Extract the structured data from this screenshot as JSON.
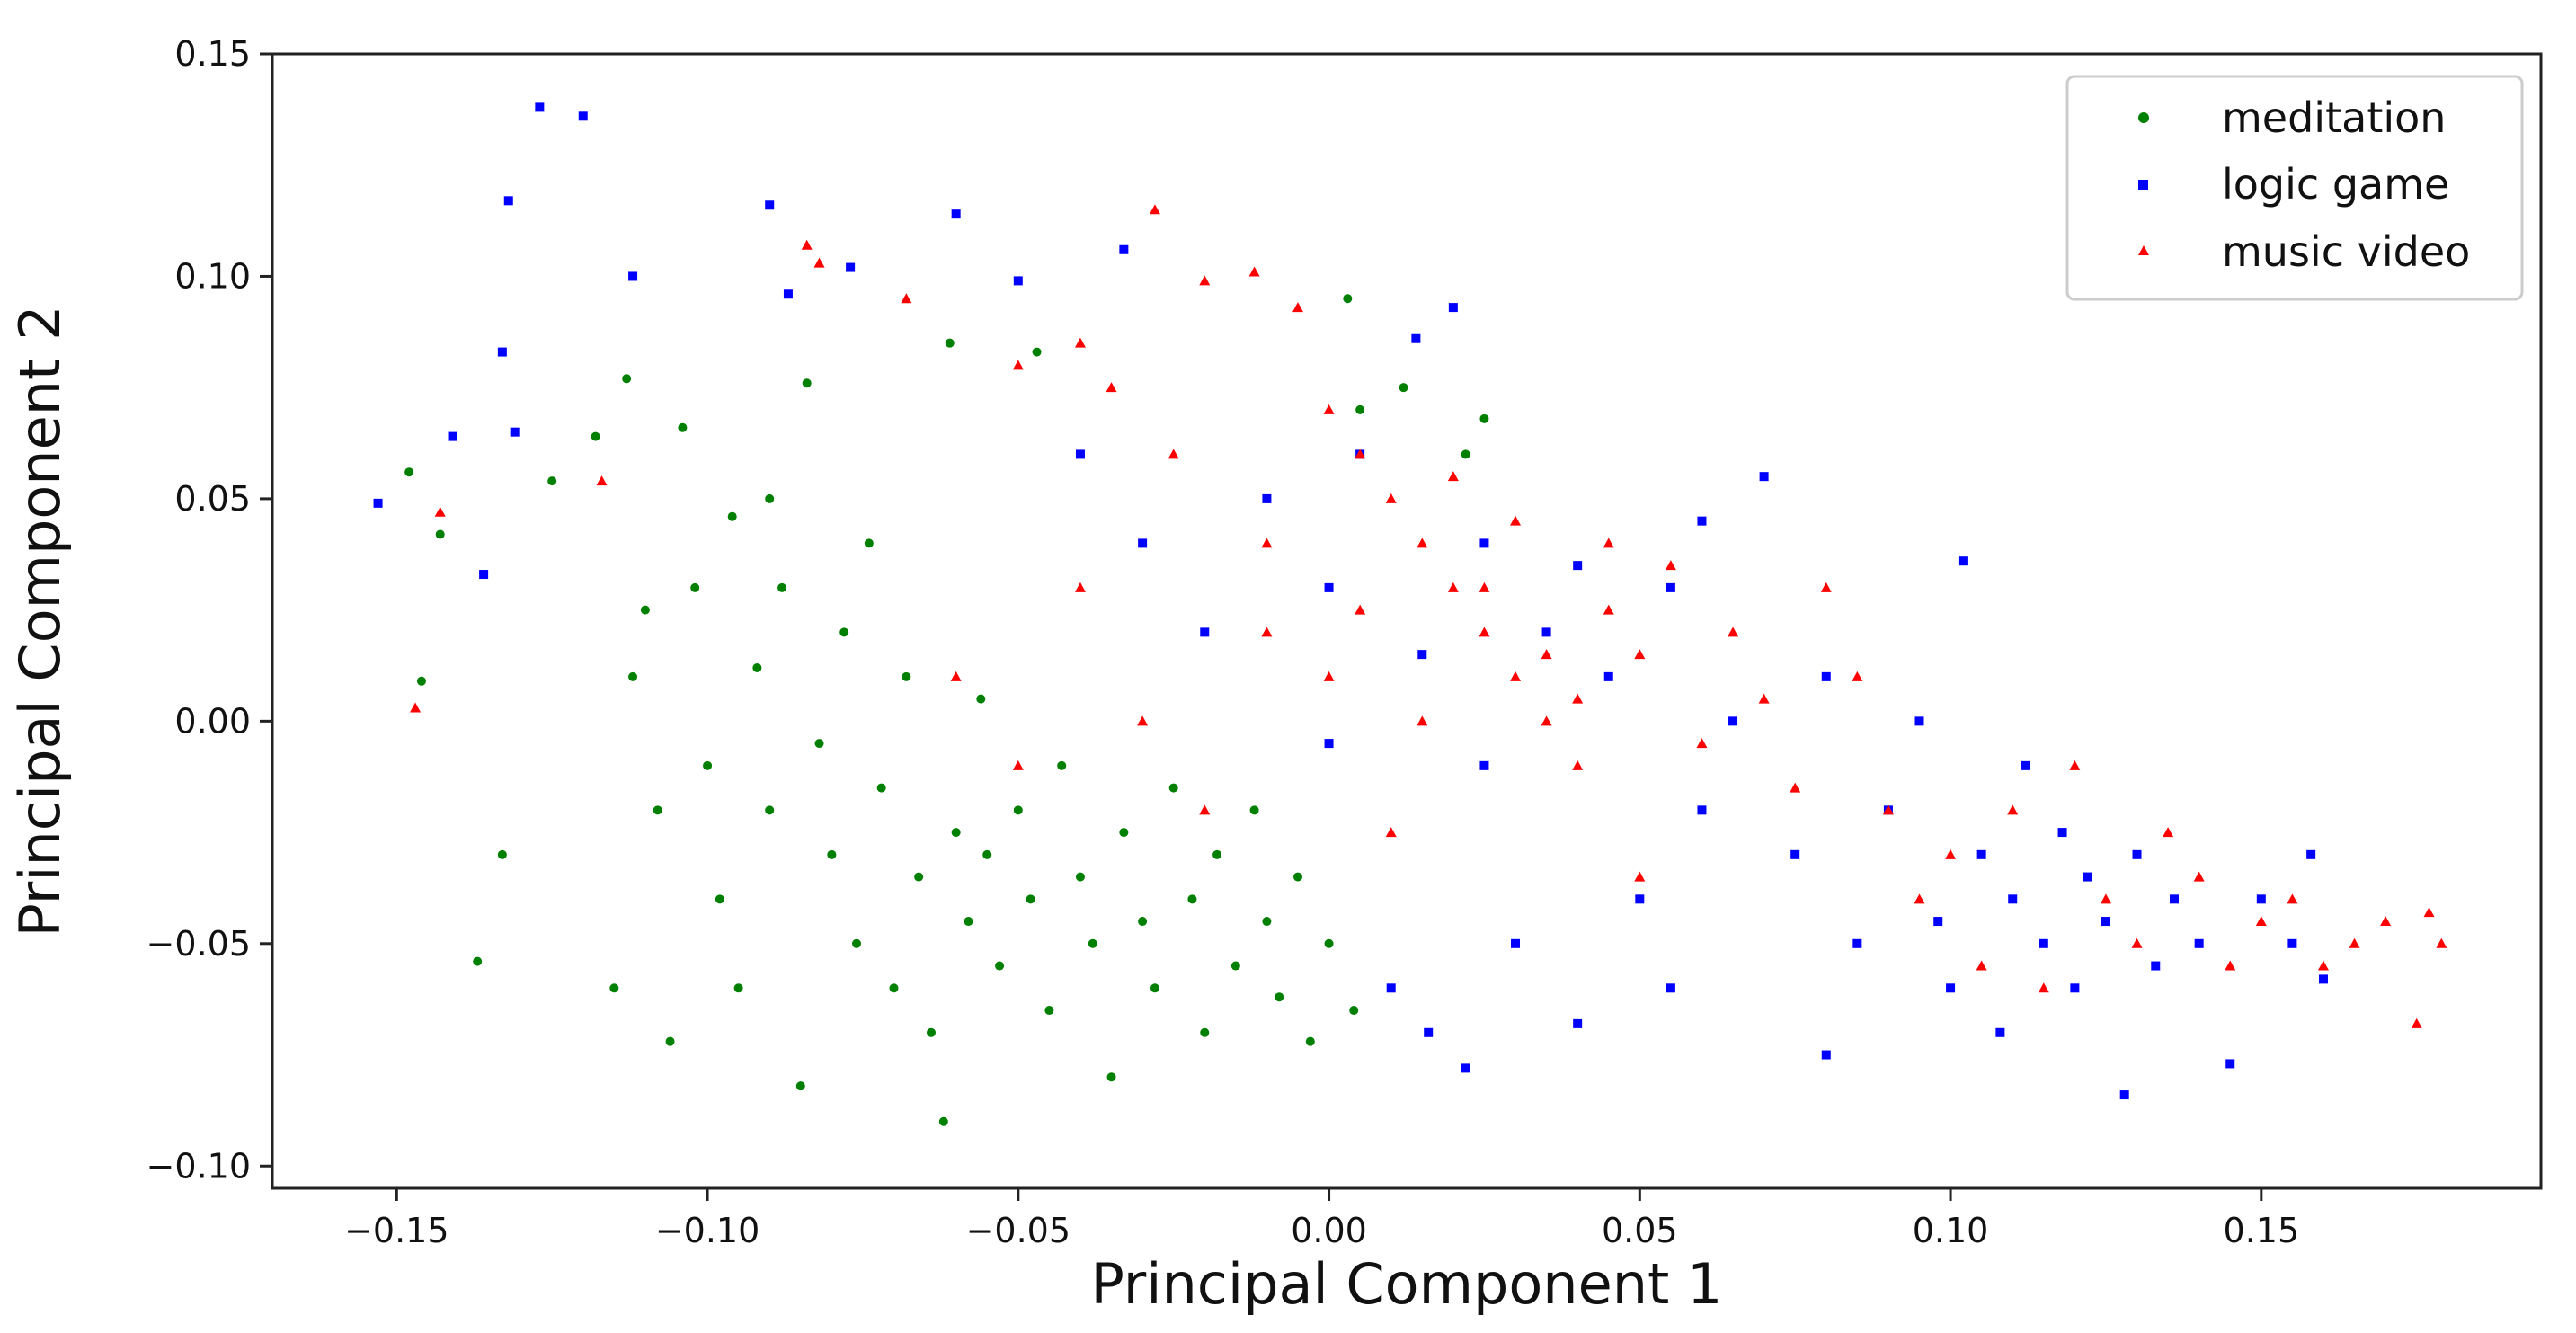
{
  "chart_data": {
    "type": "scatter",
    "title": "",
    "xlabel": "Principal Component 1",
    "ylabel": "Principal Component 2",
    "xlim": [
      -0.17,
      0.195
    ],
    "ylim": [
      -0.105,
      0.15
    ],
    "xticks": [
      -0.15,
      -0.1,
      -0.05,
      0.0,
      0.05,
      0.1,
      0.15
    ],
    "xtick_labels": [
      "−0.15",
      "−0.10",
      "−0.05",
      "0.00",
      "0.05",
      "0.10",
      "0.15"
    ],
    "yticks": [
      -0.1,
      -0.05,
      0.0,
      0.05,
      0.1,
      0.15
    ],
    "ytick_labels": [
      "−0.10",
      "−0.05",
      "0.00",
      "0.05",
      "0.10",
      "0.15"
    ],
    "grid": false,
    "legend_position": "top-right",
    "series": [
      {
        "name": "meditation",
        "color": "#008000",
        "marker": "circle",
        "points": [
          [
            -0.148,
            0.056
          ],
          [
            -0.146,
            0.009
          ],
          [
            -0.143,
            0.042
          ],
          [
            -0.137,
            -0.054
          ],
          [
            -0.133,
            -0.03
          ],
          [
            -0.125,
            0.054
          ],
          [
            -0.118,
            0.064
          ],
          [
            -0.115,
            -0.06
          ],
          [
            -0.113,
            0.077
          ],
          [
            -0.11,
            0.025
          ],
          [
            -0.106,
            -0.072
          ],
          [
            -0.104,
            0.066
          ],
          [
            -0.1,
            -0.01
          ],
          [
            -0.098,
            -0.04
          ],
          [
            -0.096,
            0.046
          ],
          [
            -0.092,
            0.012
          ],
          [
            -0.09,
            -0.02
          ],
          [
            -0.088,
            0.03
          ],
          [
            -0.085,
            -0.082
          ],
          [
            -0.084,
            0.076
          ],
          [
            -0.082,
            -0.005
          ],
          [
            -0.08,
            -0.03
          ],
          [
            -0.078,
            0.02
          ],
          [
            -0.076,
            -0.05
          ],
          [
            -0.074,
            0.04
          ],
          [
            -0.072,
            -0.015
          ],
          [
            -0.07,
            -0.06
          ],
          [
            -0.068,
            0.01
          ],
          [
            -0.066,
            -0.035
          ],
          [
            -0.064,
            -0.07
          ],
          [
            -0.062,
            -0.09
          ],
          [
            -0.061,
            0.085
          ],
          [
            -0.06,
            -0.025
          ],
          [
            -0.058,
            -0.045
          ],
          [
            -0.056,
            0.005
          ],
          [
            -0.055,
            -0.03
          ],
          [
            -0.053,
            -0.055
          ],
          [
            -0.05,
            -0.02
          ],
          [
            -0.048,
            -0.04
          ],
          [
            -0.047,
            0.083
          ],
          [
            -0.045,
            -0.065
          ],
          [
            -0.043,
            -0.01
          ],
          [
            -0.04,
            -0.035
          ],
          [
            -0.038,
            -0.05
          ],
          [
            -0.035,
            -0.08
          ],
          [
            -0.033,
            -0.025
          ],
          [
            -0.03,
            -0.045
          ],
          [
            -0.028,
            -0.06
          ],
          [
            -0.025,
            -0.015
          ],
          [
            -0.022,
            -0.04
          ],
          [
            -0.02,
            -0.07
          ],
          [
            -0.018,
            -0.03
          ],
          [
            -0.015,
            -0.055
          ],
          [
            -0.012,
            -0.02
          ],
          [
            -0.01,
            -0.045
          ],
          [
            -0.008,
            -0.062
          ],
          [
            -0.005,
            -0.035
          ],
          [
            -0.003,
            -0.072
          ],
          [
            0.0,
            -0.05
          ],
          [
            0.003,
            0.095
          ],
          [
            0.004,
            -0.065
          ],
          [
            0.005,
            0.07
          ],
          [
            0.012,
            0.075
          ],
          [
            0.022,
            0.06
          ],
          [
            0.025,
            0.068
          ],
          [
            -0.09,
            0.05
          ],
          [
            -0.095,
            -0.06
          ],
          [
            -0.102,
            0.03
          ],
          [
            -0.108,
            -0.02
          ],
          [
            -0.112,
            0.01
          ]
        ]
      },
      {
        "name": "logic game",
        "color": "#0000ff",
        "marker": "square",
        "points": [
          [
            -0.153,
            0.049
          ],
          [
            -0.141,
            0.064
          ],
          [
            -0.136,
            0.033
          ],
          [
            -0.133,
            0.083
          ],
          [
            -0.132,
            0.117
          ],
          [
            -0.131,
            0.065
          ],
          [
            -0.127,
            0.138
          ],
          [
            -0.12,
            0.136
          ],
          [
            -0.112,
            0.1
          ],
          [
            -0.09,
            0.116
          ],
          [
            -0.087,
            0.096
          ],
          [
            -0.077,
            0.102
          ],
          [
            -0.06,
            0.114
          ],
          [
            -0.05,
            0.099
          ],
          [
            -0.033,
            0.106
          ],
          [
            -0.04,
            0.06
          ],
          [
            -0.03,
            0.04
          ],
          [
            -0.02,
            0.02
          ],
          [
            -0.01,
            0.05
          ],
          [
            0.0,
            0.03
          ],
          [
            0.005,
            0.06
          ],
          [
            0.01,
            -0.06
          ],
          [
            0.014,
            0.086
          ],
          [
            0.016,
            -0.07
          ],
          [
            0.02,
            0.093
          ],
          [
            0.022,
            -0.078
          ],
          [
            0.025,
            0.04
          ],
          [
            0.03,
            -0.05
          ],
          [
            0.035,
            0.02
          ],
          [
            0.04,
            -0.068
          ],
          [
            0.045,
            0.01
          ],
          [
            0.05,
            -0.04
          ],
          [
            0.055,
            0.03
          ],
          [
            0.06,
            -0.02
          ],
          [
            0.065,
            0.0
          ],
          [
            0.07,
            0.055
          ],
          [
            0.075,
            -0.03
          ],
          [
            0.08,
            0.01
          ],
          [
            0.085,
            -0.05
          ],
          [
            0.09,
            -0.02
          ],
          [
            0.095,
            0.0
          ],
          [
            0.098,
            -0.045
          ],
          [
            0.1,
            -0.06
          ],
          [
            0.102,
            0.036
          ],
          [
            0.105,
            -0.03
          ],
          [
            0.108,
            -0.07
          ],
          [
            0.11,
            -0.04
          ],
          [
            0.112,
            -0.01
          ],
          [
            0.115,
            -0.05
          ],
          [
            0.118,
            -0.025
          ],
          [
            0.12,
            -0.06
          ],
          [
            0.122,
            -0.035
          ],
          [
            0.125,
            -0.045
          ],
          [
            0.128,
            -0.084
          ],
          [
            0.13,
            -0.03
          ],
          [
            0.133,
            -0.055
          ],
          [
            0.136,
            -0.04
          ],
          [
            0.14,
            -0.05
          ],
          [
            0.145,
            -0.077
          ],
          [
            0.15,
            -0.04
          ],
          [
            0.155,
            -0.05
          ],
          [
            0.158,
            -0.03
          ],
          [
            0.16,
            -0.058
          ],
          [
            0.0,
            -0.005
          ],
          [
            0.015,
            0.015
          ],
          [
            0.025,
            -0.01
          ],
          [
            0.04,
            0.035
          ],
          [
            0.055,
            -0.06
          ],
          [
            0.06,
            0.045
          ],
          [
            0.08,
            -0.075
          ]
        ]
      },
      {
        "name": "music video",
        "color": "#ff0000",
        "marker": "triangle",
        "points": [
          [
            -0.147,
            0.003
          ],
          [
            -0.143,
            0.047
          ],
          [
            -0.117,
            0.054
          ],
          [
            -0.084,
            0.107
          ],
          [
            -0.082,
            0.103
          ],
          [
            -0.068,
            0.095
          ],
          [
            -0.05,
            0.08
          ],
          [
            -0.04,
            0.085
          ],
          [
            -0.035,
            0.075
          ],
          [
            -0.028,
            0.115
          ],
          [
            -0.02,
            0.099
          ],
          [
            -0.012,
            0.101
          ],
          [
            -0.005,
            0.093
          ],
          [
            0.0,
            0.07
          ],
          [
            0.005,
            0.06
          ],
          [
            0.01,
            0.05
          ],
          [
            0.015,
            0.04
          ],
          [
            0.02,
            0.03
          ],
          [
            0.025,
            0.02
          ],
          [
            0.03,
            0.01
          ],
          [
            0.035,
            0.0
          ],
          [
            0.04,
            -0.01
          ],
          [
            0.045,
            0.025
          ],
          [
            0.05,
            0.015
          ],
          [
            0.055,
            0.035
          ],
          [
            0.06,
            -0.005
          ],
          [
            0.065,
            0.02
          ],
          [
            0.07,
            0.005
          ],
          [
            0.075,
            -0.015
          ],
          [
            0.08,
            0.03
          ],
          [
            0.085,
            0.01
          ],
          [
            0.09,
            -0.02
          ],
          [
            0.095,
            -0.04
          ],
          [
            0.1,
            -0.03
          ],
          [
            0.105,
            -0.055
          ],
          [
            0.11,
            -0.02
          ],
          [
            0.115,
            -0.06
          ],
          [
            0.12,
            -0.01
          ],
          [
            0.125,
            -0.04
          ],
          [
            0.13,
            -0.05
          ],
          [
            0.135,
            -0.025
          ],
          [
            0.14,
            -0.035
          ],
          [
            0.145,
            -0.055
          ],
          [
            0.15,
            -0.045
          ],
          [
            0.155,
            -0.04
          ],
          [
            0.16,
            -0.055
          ],
          [
            0.165,
            -0.05
          ],
          [
            0.17,
            -0.045
          ],
          [
            0.175,
            -0.068
          ],
          [
            0.177,
            -0.043
          ],
          [
            0.179,
            -0.05
          ],
          [
            -0.06,
            0.01
          ],
          [
            -0.05,
            -0.01
          ],
          [
            -0.04,
            0.03
          ],
          [
            -0.03,
            0.0
          ],
          [
            -0.02,
            -0.02
          ],
          [
            -0.01,
            0.04
          ],
          [
            0.0,
            0.01
          ],
          [
            0.01,
            -0.025
          ],
          [
            0.02,
            0.055
          ],
          [
            0.03,
            0.045
          ],
          [
            0.04,
            0.005
          ],
          [
            0.05,
            -0.035
          ],
          [
            -0.01,
            0.02
          ],
          [
            0.015,
            0.0
          ],
          [
            0.025,
            0.03
          ],
          [
            0.035,
            0.015
          ],
          [
            0.005,
            0.025
          ],
          [
            -0.025,
            0.06
          ],
          [
            0.045,
            0.04
          ]
        ]
      }
    ]
  }
}
